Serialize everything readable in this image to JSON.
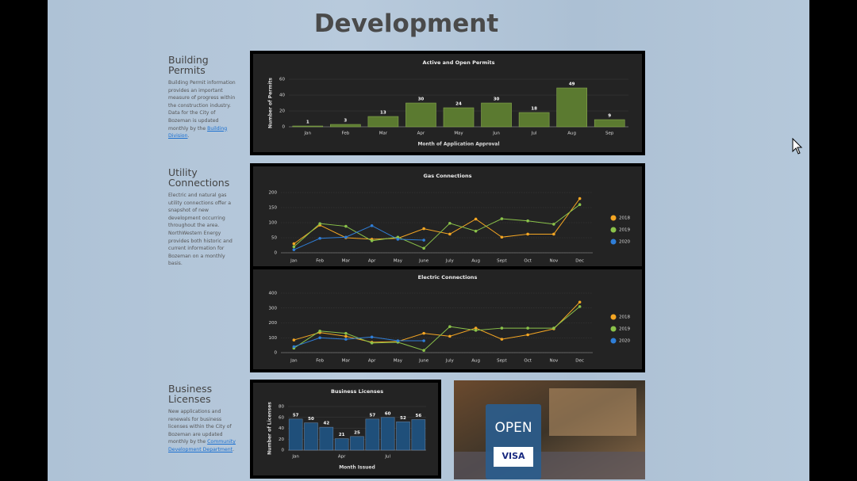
{
  "title": "Development",
  "sections": [
    {
      "heading": "Building Permits",
      "text": "Building Permit information provides an important measure of progress within the construction industry. Data for the City of Bozeman is updated monthly by the ",
      "link": "Building Division",
      "after": "."
    },
    {
      "heading": "Utility Connections",
      "text": "Electric and natural gas utility connections offer a snapshot of new development occurring throughout the area. NorthWestern Energy provides both historic and current information for Bozeman on a monthly basis."
    },
    {
      "heading": "Business Licenses",
      "text": "New applications and renewals for business licenses within the City of Bozeman are updated monthly by the ",
      "link": "Community Development Department",
      "after": "."
    }
  ],
  "chart_data": [
    {
      "type": "bar",
      "title": "Active and Open Permits",
      "y_label": "Number of Permits",
      "x_label": "Month of Application Approval",
      "categories": [
        "Jan",
        "Feb",
        "Mar",
        "Apr",
        "May",
        "Jun",
        "Jul",
        "Aug",
        "Sep"
      ],
      "values": [
        1,
        3,
        13,
        30,
        24,
        30,
        18,
        49,
        9
      ],
      "color": "#5b7a30",
      "ylim": [
        0,
        60
      ],
      "yticks": [
        0,
        20,
        40,
        60
      ],
      "grid": true
    },
    {
      "type": "line",
      "title": "Gas Connections",
      "categories": [
        "Jan",
        "Feb",
        "Mar",
        "Apr",
        "May",
        "June",
        "July",
        "Aug",
        "Sept",
        "Oct",
        "Nov",
        "Dec"
      ],
      "series": [
        {
          "name": "2018",
          "color": "#f5a623",
          "values": [
            30,
            92,
            50,
            45,
            48,
            80,
            62,
            112,
            52,
            62,
            62,
            180
          ]
        },
        {
          "name": "2019",
          "color": "#8bc34a",
          "values": [
            20,
            97,
            88,
            40,
            52,
            15,
            98,
            72,
            113,
            106,
            95,
            160
          ]
        },
        {
          "name": "2020",
          "color": "#2f7ed8",
          "values": [
            10,
            48,
            52,
            90,
            45,
            42,
            null,
            null,
            null,
            null,
            null,
            null
          ]
        }
      ],
      "ylim": [
        0,
        200
      ],
      "yticks": [
        0,
        50,
        100,
        150,
        200
      ],
      "grid": true,
      "legend": "right"
    },
    {
      "type": "line",
      "title": "Electric Connections",
      "categories": [
        "Jan",
        "Feb",
        "Mar",
        "Apr",
        "May",
        "June",
        "July",
        "Aug",
        "Sept",
        "Oct",
        "Nov",
        "Dec"
      ],
      "series": [
        {
          "name": "2018",
          "color": "#f5a623",
          "values": [
            85,
            135,
            110,
            70,
            75,
            130,
            110,
            165,
            90,
            120,
            160,
            340
          ]
        },
        {
          "name": "2019",
          "color": "#8bc34a",
          "values": [
            30,
            145,
            130,
            65,
            70,
            15,
            175,
            150,
            165,
            165,
            165,
            310
          ]
        },
        {
          "name": "2020",
          "color": "#2f7ed8",
          "values": [
            40,
            100,
            90,
            105,
            80,
            80,
            null,
            null,
            null,
            null,
            null,
            null
          ]
        }
      ],
      "ylim": [
        0,
        400
      ],
      "yticks": [
        0,
        100,
        200,
        300,
        400
      ],
      "grid": true,
      "legend": "right"
    },
    {
      "type": "bar",
      "title": "Business Licenses",
      "y_label": "Number of Licenses",
      "x_label": "Month Issued",
      "categories": [
        "Jan",
        null,
        null,
        "Apr",
        null,
        null,
        "Jul",
        null,
        null
      ],
      "values": [
        57,
        50,
        42,
        21,
        25,
        57,
        60,
        52,
        56
      ],
      "color": "#1f4f7a",
      "ylim": [
        0,
        80
      ],
      "yticks": [
        0,
        20,
        40,
        60,
        80
      ],
      "grid": true
    }
  ],
  "image": {
    "sign_text": "OPEN",
    "card_text": "VISA"
  }
}
